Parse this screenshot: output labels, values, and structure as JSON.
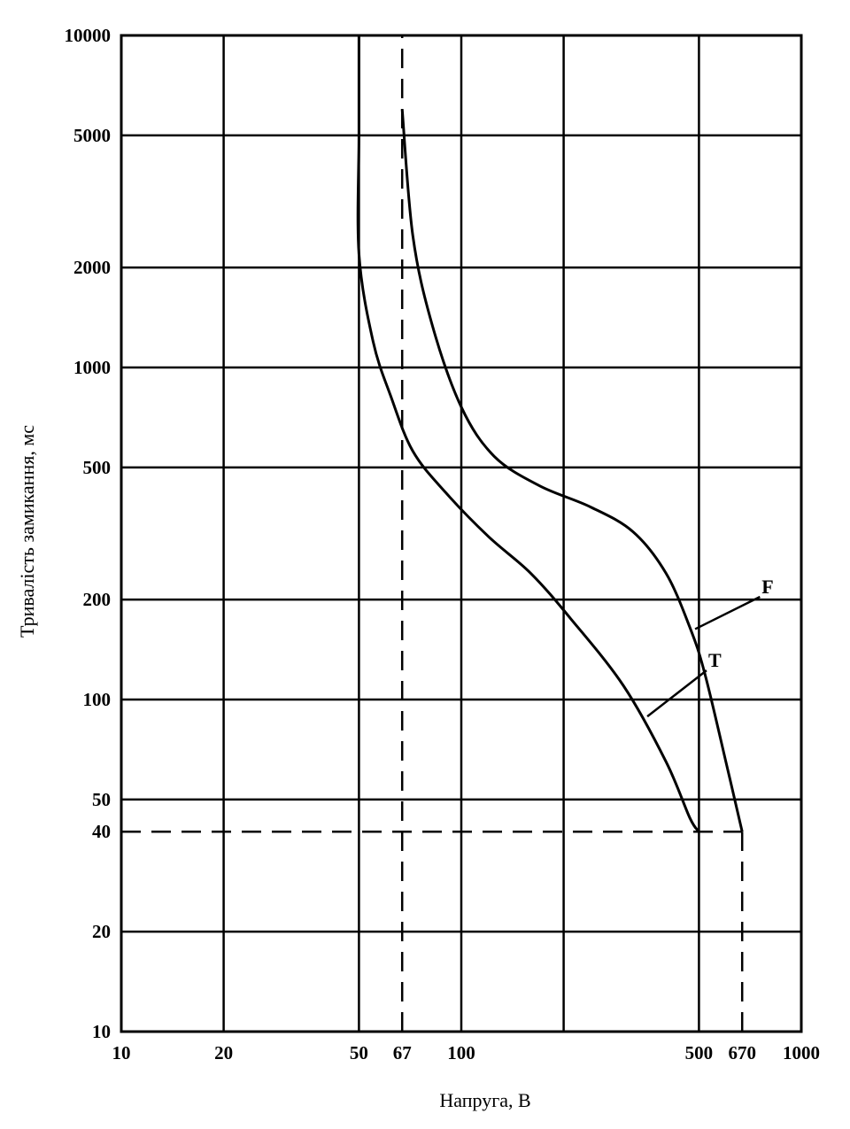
{
  "chart_data": {
    "type": "line",
    "title": "",
    "xlabel": "Напруга, В",
    "ylabel": "Тривалість замикання, мс",
    "x_scale": "log",
    "y_scale": "log",
    "xlim": [
      10,
      1000
    ],
    "ylim": [
      10,
      10000
    ],
    "grid": true,
    "x_ticks": [
      {
        "value": 10,
        "label": "10"
      },
      {
        "value": 20,
        "label": "20"
      },
      {
        "value": 50,
        "label": "50"
      },
      {
        "value": 67,
        "label": "67"
      },
      {
        "value": 100,
        "label": "100"
      },
      {
        "value": 500,
        "label": "500"
      },
      {
        "value": 670,
        "label": "670"
      },
      {
        "value": 1000,
        "label": "1000"
      }
    ],
    "x_gridlines": [
      10,
      20,
      50,
      100,
      200,
      500,
      1000
    ],
    "y_ticks": [
      {
        "value": 10000,
        "label": "10000"
      },
      {
        "value": 5000,
        "label": "5000"
      },
      {
        "value": 2000,
        "label": "2000"
      },
      {
        "value": 1000,
        "label": "1000"
      },
      {
        "value": 500,
        "label": "500"
      },
      {
        "value": 200,
        "label": "200"
      },
      {
        "value": 100,
        "label": "100"
      },
      {
        "value": 50,
        "label": "50"
      },
      {
        "value": 40,
        "label": "40"
      },
      {
        "value": 20,
        "label": "20"
      },
      {
        "value": 10,
        "label": "10"
      }
    ],
    "y_gridlines": [
      10,
      20,
      50,
      100,
      200,
      500,
      1000,
      2000,
      5000,
      10000
    ],
    "series": [
      {
        "name": "T",
        "points": [
          [
            50,
            10000
          ],
          [
            50,
            5000
          ],
          [
            50,
            2200
          ],
          [
            55,
            1200
          ],
          [
            62,
            820
          ],
          [
            72,
            560
          ],
          [
            90,
            420
          ],
          [
            120,
            310
          ],
          [
            160,
            240
          ],
          [
            210,
            175
          ],
          [
            300,
            110
          ],
          [
            400,
            65
          ],
          [
            470,
            44
          ],
          [
            500,
            40
          ]
        ]
      },
      {
        "name": "F",
        "points": [
          [
            67,
            6000
          ],
          [
            72,
            2500
          ],
          [
            82,
            1350
          ],
          [
            100,
            760
          ],
          [
            125,
            540
          ],
          [
            170,
            440
          ],
          [
            240,
            380
          ],
          [
            320,
            320
          ],
          [
            400,
            240
          ],
          [
            470,
            165
          ],
          [
            520,
            120
          ],
          [
            600,
            65
          ],
          [
            670,
            40
          ]
        ]
      }
    ],
    "reference_lines": [
      {
        "orientation": "vertical",
        "value": 67,
        "from": 10,
        "to": 10000,
        "style": "dashed"
      },
      {
        "orientation": "vertical",
        "value": 670,
        "from": 10,
        "to": 40,
        "style": "dashed"
      },
      {
        "orientation": "horizontal",
        "value": 40,
        "from": 10,
        "to": 670,
        "style": "dashed"
      }
    ],
    "annotations": [
      {
        "text": "F",
        "points_to": "F",
        "at": [
          560,
          150
        ]
      },
      {
        "text": "T",
        "points_to": "T",
        "at": [
          390,
          90
        ]
      }
    ]
  }
}
